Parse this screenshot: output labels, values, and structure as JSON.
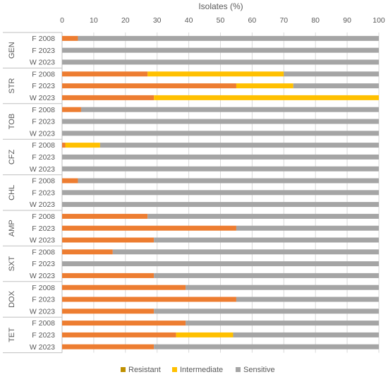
{
  "chart_data": {
    "type": "bar",
    "orientation": "horizontal",
    "stacked": true,
    "xlabel": "Isolates (%)",
    "xlim": [
      0,
      100
    ],
    "xticks": [
      0,
      10,
      20,
      30,
      40,
      50,
      60,
      70,
      80,
      90,
      100
    ],
    "legend_position": "bottom",
    "series_names": [
      "Resistant",
      "Intermediate",
      "Sensitive"
    ],
    "series_colors": [
      "#bf9000",
      "#ffc000",
      "#a5a5a5"
    ],
    "resistant_bar_color": "#ed7d31",
    "groups": [
      {
        "name": "GEN",
        "rows": [
          {
            "label": "F 2008",
            "resistant": 5,
            "intermediate": 0,
            "sensitive": 95
          },
          {
            "label": "F 2023",
            "resistant": 0,
            "intermediate": 0,
            "sensitive": 100
          },
          {
            "label": "W 2023",
            "resistant": 0,
            "intermediate": 0,
            "sensitive": 100
          }
        ]
      },
      {
        "name": "STR",
        "rows": [
          {
            "label": "F 2008",
            "resistant": 27,
            "intermediate": 43,
            "sensitive": 30
          },
          {
            "label": "F 2023",
            "resistant": 55,
            "intermediate": 18,
            "sensitive": 27
          },
          {
            "label": "W 2023",
            "resistant": 29,
            "intermediate": 71,
            "sensitive": 0
          }
        ]
      },
      {
        "name": "TOB",
        "rows": [
          {
            "label": "F 2008",
            "resistant": 6,
            "intermediate": 0,
            "sensitive": 94
          },
          {
            "label": "F 2023",
            "resistant": 0,
            "intermediate": 0,
            "sensitive": 100
          },
          {
            "label": "W 2023",
            "resistant": 0,
            "intermediate": 0,
            "sensitive": 100
          }
        ]
      },
      {
        "name": "CFZ",
        "rows": [
          {
            "label": "F 2008",
            "resistant": 1,
            "intermediate": 11,
            "sensitive": 88
          },
          {
            "label": "F 2023",
            "resistant": 0,
            "intermediate": 0,
            "sensitive": 100
          },
          {
            "label": "W 2023",
            "resistant": 0,
            "intermediate": 0,
            "sensitive": 100
          }
        ]
      },
      {
        "name": "CHL",
        "rows": [
          {
            "label": "F 2008",
            "resistant": 5,
            "intermediate": 0,
            "sensitive": 95
          },
          {
            "label": "F 2023",
            "resistant": 0,
            "intermediate": 0,
            "sensitive": 100
          },
          {
            "label": "W 2023",
            "resistant": 0,
            "intermediate": 0,
            "sensitive": 100
          }
        ]
      },
      {
        "name": "AMP",
        "rows": [
          {
            "label": "F 2008",
            "resistant": 27,
            "intermediate": 0,
            "sensitive": 73
          },
          {
            "label": "F 2023",
            "resistant": 55,
            "intermediate": 0,
            "sensitive": 45
          },
          {
            "label": "W 2023",
            "resistant": 29,
            "intermediate": 0,
            "sensitive": 71
          }
        ]
      },
      {
        "name": "SXT",
        "rows": [
          {
            "label": "F 2008",
            "resistant": 16,
            "intermediate": 0,
            "sensitive": 84
          },
          {
            "label": "F 2023",
            "resistant": 0,
            "intermediate": 0,
            "sensitive": 100
          },
          {
            "label": "W 2023",
            "resistant": 29,
            "intermediate": 0,
            "sensitive": 71
          }
        ]
      },
      {
        "name": "DOX",
        "rows": [
          {
            "label": "F 2008",
            "resistant": 39,
            "intermediate": 0,
            "sensitive": 61
          },
          {
            "label": "F 2023",
            "resistant": 55,
            "intermediate": 0,
            "sensitive": 45
          },
          {
            "label": "W 2023",
            "resistant": 29,
            "intermediate": 0,
            "sensitive": 71
          }
        ]
      },
      {
        "name": "TET",
        "rows": [
          {
            "label": "F 2008",
            "resistant": 39,
            "intermediate": 0,
            "sensitive": 61
          },
          {
            "label": "F 2023",
            "resistant": 36,
            "intermediate": 18,
            "sensitive": 46
          },
          {
            "label": "W 2023",
            "resistant": 29,
            "intermediate": 0,
            "sensitive": 71
          }
        ]
      }
    ]
  }
}
